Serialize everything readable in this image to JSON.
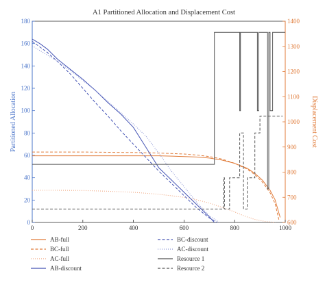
{
  "chart_data": {
    "type": "line",
    "title": "A1 Partitioned Allocation and Displacement Cost",
    "xlabel": "",
    "ylabel_left": "Partitioned Allocation",
    "ylabel_right": "Displacement Cost",
    "xlim": [
      0,
      1000
    ],
    "ylim_left": [
      0,
      180
    ],
    "ylim_right": [
      600,
      1400
    ],
    "x_ticks": [
      "0",
      "200",
      "400",
      "600",
      "800",
      "1000"
    ],
    "y_left_ticks": [
      "0",
      "20",
      "40",
      "60",
      "80",
      "100",
      "120",
      "140",
      "160",
      "180"
    ],
    "y_right_ticks": [
      "600",
      "700",
      "800",
      "900",
      "1000",
      "1100",
      "1200",
      "1300",
      "1400"
    ],
    "colors": {
      "left_axis": "#4a74c9",
      "right_axis": "#e07b39",
      "orange": "#e07b39",
      "blue": "#4655b5",
      "gray": "#555555",
      "light_orange": "#f0a882",
      "light_blue": "#8e98d6"
    },
    "legend_position": "bottom",
    "grid": false,
    "series": [
      {
        "name": "AB-full",
        "axis": "right",
        "color": "#e07b39",
        "dash": "solid",
        "x": [
          0,
          100,
          200,
          300,
          400,
          500,
          600,
          650,
          700,
          750,
          800,
          850,
          880,
          910,
          940,
          960,
          980
        ],
        "y": [
          865,
          865,
          865,
          865,
          865,
          865,
          862,
          860,
          856,
          848,
          835,
          815,
          795,
          768,
          728,
          690,
          620
        ]
      },
      {
        "name": "BC-full",
        "axis": "right",
        "color": "#e07b39",
        "dash": "dashed",
        "x": [
          0,
          100,
          200,
          300,
          400,
          500,
          600,
          650,
          700,
          750,
          800,
          850,
          880,
          910,
          940,
          960,
          975
        ],
        "y": [
          880,
          880,
          880,
          879,
          878,
          876,
          872,
          868,
          862,
          852,
          835,
          812,
          790,
          760,
          718,
          675,
          610
        ]
      },
      {
        "name": "AC-full",
        "axis": "right",
        "color": "#f0a882",
        "dash": "dotted",
        "x": [
          0,
          100,
          200,
          300,
          400,
          500,
          550,
          600,
          650,
          700,
          750,
          800,
          840,
          880,
          920,
          960
        ],
        "y": [
          728,
          728,
          727,
          724,
          720,
          712,
          706,
          700,
          690,
          677,
          660,
          642,
          625,
          612,
          604,
          600
        ]
      },
      {
        "name": "AB-discount",
        "axis": "left",
        "color": "#4655b5",
        "dash": "solid",
        "x": [
          0,
          30,
          60,
          100,
          150,
          200,
          250,
          300,
          350,
          400,
          450,
          500,
          550,
          600,
          650,
          700,
          720
        ],
        "y": [
          164,
          160,
          155,
          146,
          137,
          128,
          118,
          107,
          97,
          85,
          67,
          49,
          38,
          27,
          16,
          5,
          0
        ]
      },
      {
        "name": "BC-discount",
        "axis": "left",
        "color": "#4655b5",
        "dash": "dashed",
        "x": [
          0,
          30,
          60,
          100,
          150,
          200,
          250,
          300,
          350,
          400,
          450,
          500,
          550,
          600,
          650,
          700,
          730
        ],
        "y": [
          162,
          157,
          152,
          144,
          133,
          120,
          107,
          95,
          82,
          70,
          58,
          46,
          35,
          24,
          13,
          4,
          0
        ]
      },
      {
        "name": "AC-discount",
        "axis": "left",
        "color": "#8e98d6",
        "dash": "dotted",
        "x": [
          0,
          50,
          100,
          150,
          200,
          250,
          300,
          350,
          400,
          450,
          500,
          550,
          600,
          650,
          700,
          740
        ],
        "y": [
          158,
          151,
          144,
          136,
          127,
          118,
          108,
          98,
          88,
          77,
          62,
          46,
          32,
          18,
          6,
          0
        ]
      },
      {
        "name": "Resource 1",
        "axis": "left",
        "color": "#555555",
        "dash": "solid",
        "x": [
          0,
          720,
          720,
          820,
          820,
          823,
          823,
          890,
          890,
          895,
          895,
          930,
          930,
          935,
          935,
          940,
          940,
          950,
          950,
          1000
        ],
        "y": [
          52,
          52,
          170,
          170,
          100,
          100,
          170,
          170,
          100,
          100,
          170,
          170,
          30,
          30,
          170,
          170,
          100,
          100,
          170,
          170
        ]
      },
      {
        "name": "Resource 2",
        "axis": "left",
        "color": "#555555",
        "dash": "dashed",
        "x": [
          0,
          755,
          755,
          760,
          760,
          780,
          780,
          820,
          820,
          835,
          835,
          850,
          850,
          880,
          880,
          900,
          900,
          990
        ],
        "y": [
          12,
          12,
          40,
          40,
          12,
          12,
          40,
          40,
          80,
          80,
          12,
          12,
          40,
          40,
          80,
          80,
          95,
          95
        ]
      }
    ]
  }
}
